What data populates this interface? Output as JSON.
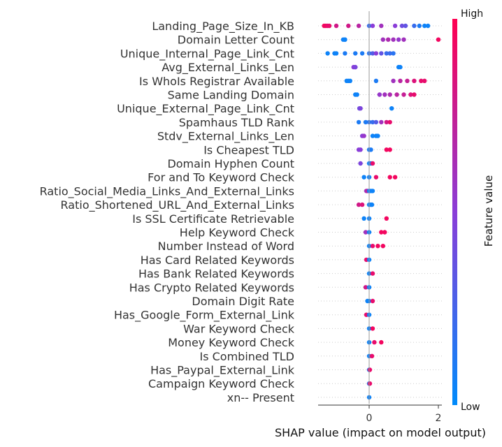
{
  "chart_data": {
    "type": "scatter",
    "subtype": "shap-beeswarm",
    "xlabel": "SHAP value (impact on model output)",
    "xticks": [
      0,
      2
    ],
    "xlim": [
      -1.45,
      2.1
    ],
    "colorbar": {
      "label": "Feature value",
      "high": "High",
      "low": "Low",
      "low_color": "#008bfb",
      "high_color": "#ff0051"
    },
    "features": [
      {
        "name": "Landing_Page_Size_In_KB",
        "points": [
          [
            -1.3,
            0.95
          ],
          [
            -1.25,
            0.95
          ],
          [
            -1.2,
            0.9
          ],
          [
            -1.15,
            0.9
          ],
          [
            -0.95,
            0.8
          ],
          [
            -0.6,
            0.8
          ],
          [
            -0.3,
            0.7
          ],
          [
            0.0,
            0.2
          ],
          [
            0.1,
            0.5
          ],
          [
            0.35,
            0.6
          ],
          [
            0.75,
            0.5
          ],
          [
            0.95,
            0.4
          ],
          [
            1.05,
            0.35
          ],
          [
            1.3,
            0.2
          ],
          [
            1.45,
            0.1
          ],
          [
            1.6,
            0.05
          ],
          [
            1.7,
            0.05
          ]
        ]
      },
      {
        "name": "Domain Letter Count",
        "points": [
          [
            -0.75,
            0.05
          ],
          [
            -0.7,
            0.05
          ],
          [
            -0.7,
            0.05
          ],
          [
            0.4,
            0.6
          ],
          [
            0.55,
            0.65
          ],
          [
            0.7,
            0.6
          ],
          [
            0.85,
            0.55
          ],
          [
            1.0,
            0.6
          ],
          [
            2.0,
            0.95
          ]
        ]
      },
      {
        "name": "Unique_Internal_Page_Link_Cnt",
        "points": [
          [
            -1.2,
            0.05
          ],
          [
            -1.0,
            0.05
          ],
          [
            -0.95,
            0.05
          ],
          [
            -0.7,
            0.1
          ],
          [
            -0.4,
            0.1
          ],
          [
            -0.2,
            0.1
          ],
          [
            0.0,
            0.15
          ],
          [
            0.1,
            0.3
          ],
          [
            0.2,
            0.5
          ],
          [
            0.35,
            0.35
          ],
          [
            0.5,
            0.2
          ],
          [
            0.6,
            0.2
          ],
          [
            0.7,
            0.15
          ]
        ]
      },
      {
        "name": "Avg_External_Links_Len",
        "points": [
          [
            -0.45,
            0.5
          ],
          [
            -0.4,
            0.5
          ],
          [
            -0.4,
            0.45
          ],
          [
            0.85,
            0.05
          ],
          [
            0.9,
            0.05
          ]
        ]
      },
      {
        "name": "Is WhoIs Registrar Available",
        "points": [
          [
            -0.65,
            0.05
          ],
          [
            -0.6,
            0.05
          ],
          [
            -0.55,
            0.05
          ],
          [
            0.2,
            0.1
          ],
          [
            0.7,
            0.6
          ],
          [
            0.9,
            0.7
          ],
          [
            1.1,
            0.75
          ],
          [
            1.3,
            0.85
          ],
          [
            1.5,
            0.9
          ],
          [
            1.6,
            0.9
          ]
        ]
      },
      {
        "name": "Same Landing Domain",
        "points": [
          [
            -0.4,
            0.05
          ],
          [
            -0.35,
            0.05
          ],
          [
            0.3,
            0.55
          ],
          [
            0.45,
            0.6
          ],
          [
            0.6,
            0.65
          ],
          [
            0.8,
            0.7
          ],
          [
            1.0,
            0.75
          ],
          [
            1.2,
            0.85
          ],
          [
            1.3,
            0.9
          ]
        ]
      },
      {
        "name": "Unique_External_Page_Link_Cnt",
        "points": [
          [
            -0.28,
            0.4
          ],
          [
            -0.25,
            0.45
          ],
          [
            0.65,
            0.05
          ]
        ]
      },
      {
        "name": "Spamhaus TLD Rank",
        "points": [
          [
            -0.3,
            0.1
          ],
          [
            -0.1,
            0.1
          ],
          [
            0.0,
            0.15
          ],
          [
            0.1,
            0.2
          ],
          [
            0.2,
            0.3
          ],
          [
            0.35,
            0.6
          ],
          [
            0.5,
            0.8
          ],
          [
            0.6,
            0.9
          ]
        ]
      },
      {
        "name": "Stdv_External_Links_Len",
        "points": [
          [
            -0.2,
            0.5
          ],
          [
            -0.15,
            0.55
          ],
          [
            0.1,
            0.05
          ],
          [
            0.2,
            0.05
          ],
          [
            0.25,
            0.05
          ]
        ]
      },
      {
        "name": "Is Cheapest TLD",
        "points": [
          [
            -0.3,
            0.5
          ],
          [
            -0.25,
            0.5
          ],
          [
            0.0,
            0.1
          ],
          [
            0.05,
            0.1
          ],
          [
            0.5,
            0.95
          ],
          [
            0.6,
            0.95
          ]
        ]
      },
      {
        "name": "Domain Hyphen Count",
        "points": [
          [
            -0.25,
            0.45
          ],
          [
            0.0,
            0.05
          ],
          [
            0.05,
            0.1
          ],
          [
            0.1,
            0.9
          ]
        ]
      },
      {
        "name": "For and To Keyword Check",
        "points": [
          [
            -0.15,
            0.05
          ],
          [
            0.0,
            0.05
          ],
          [
            0.2,
            0.9
          ],
          [
            0.6,
            0.95
          ],
          [
            0.75,
            0.95
          ]
        ]
      },
      {
        "name": "Ratio_Social_Media_Links_And_External_Links",
        "points": [
          [
            -0.08,
            0.6
          ],
          [
            -0.05,
            0.7
          ],
          [
            0.0,
            0.05
          ],
          [
            0.05,
            0.05
          ],
          [
            0.1,
            0.05
          ]
        ]
      },
      {
        "name": "Ratio_Shortened_URL_And_External_Links",
        "points": [
          [
            -0.3,
            0.8
          ],
          [
            -0.2,
            0.85
          ],
          [
            0.0,
            0.05
          ],
          [
            0.05,
            0.05
          ],
          [
            0.08,
            0.05
          ]
        ]
      },
      {
        "name": "Is SSL Certificate Retrievable",
        "points": [
          [
            -0.15,
            0.05
          ],
          [
            0.0,
            0.05
          ],
          [
            0.5,
            0.95
          ]
        ]
      },
      {
        "name": "Help Keyword Check",
        "points": [
          [
            -0.1,
            0.6
          ],
          [
            0.0,
            0.05
          ],
          [
            0.35,
            0.95
          ],
          [
            0.45,
            0.95
          ]
        ]
      },
      {
        "name": "Number Instead of Word",
        "points": [
          [
            0.0,
            0.05
          ],
          [
            0.1,
            0.9
          ],
          [
            0.25,
            0.95
          ],
          [
            0.4,
            0.95
          ]
        ]
      },
      {
        "name": "Has Card Related Keywords",
        "points": [
          [
            -0.08,
            0.9
          ],
          [
            0.0,
            0.05
          ]
        ]
      },
      {
        "name": "Has Bank Related Keywords",
        "points": [
          [
            0.0,
            0.05
          ],
          [
            0.1,
            0.9
          ]
        ]
      },
      {
        "name": "Has Crypto Related Keywords",
        "points": [
          [
            -0.1,
            0.8
          ],
          [
            0.0,
            0.05
          ]
        ]
      },
      {
        "name": "Domain Digit Rate",
        "points": [
          [
            -0.05,
            0.05
          ],
          [
            0.0,
            0.05
          ],
          [
            0.1,
            0.9
          ]
        ]
      },
      {
        "name": "Has_Google_Form_External_Link",
        "points": [
          [
            -0.08,
            0.9
          ],
          [
            0.0,
            0.05
          ]
        ]
      },
      {
        "name": "War Keyword Check",
        "points": [
          [
            0.0,
            0.05
          ],
          [
            0.1,
            0.95
          ]
        ]
      },
      {
        "name": "Money Keyword Check",
        "points": [
          [
            0.0,
            0.05
          ],
          [
            0.15,
            0.9
          ],
          [
            0.35,
            0.95
          ]
        ]
      },
      {
        "name": "Is Combined TLD",
        "points": [
          [
            0.0,
            0.05
          ],
          [
            0.08,
            0.9
          ]
        ]
      },
      {
        "name": "Has_Paypal_External_Link",
        "points": [
          [
            0.0,
            0.05
          ],
          [
            0.02,
            0.9
          ]
        ]
      },
      {
        "name": "Campaign Keyword Check",
        "points": [
          [
            0.0,
            0.05
          ],
          [
            0.02,
            0.9
          ]
        ]
      },
      {
        "name": "xn-- Present",
        "points": [
          [
            0.0,
            0.05
          ]
        ]
      }
    ]
  }
}
